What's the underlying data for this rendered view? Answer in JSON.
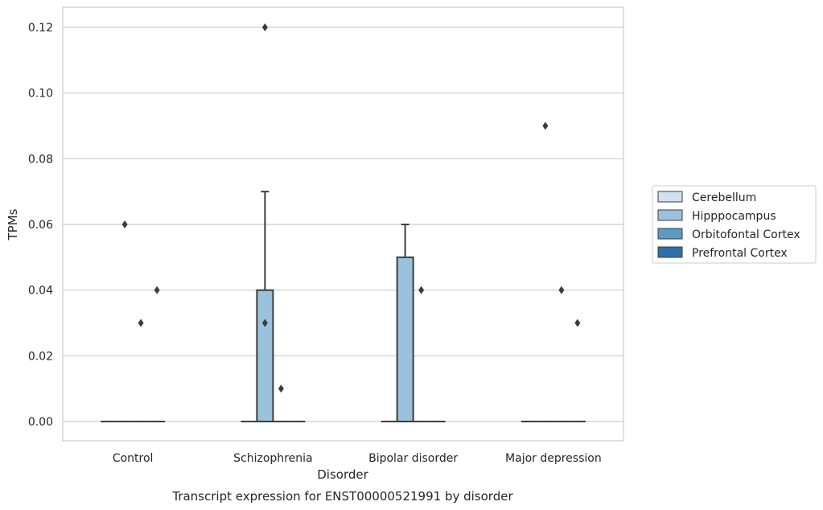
{
  "chart_data": {
    "type": "box",
    "title": "Transcript expression for ENST00000521991 by disorder",
    "xlabel": "Disorder",
    "ylabel": "TPMs",
    "ylim": [
      -0.006,
      0.126
    ],
    "yticks": [
      0.0,
      0.02,
      0.04,
      0.06,
      0.08,
      0.1,
      0.12
    ],
    "ytick_labels": [
      "0.00",
      "0.02",
      "0.04",
      "0.06",
      "0.08",
      "0.10",
      "0.12"
    ],
    "grid": "horizontal",
    "legend_position": "right",
    "categories": [
      "Control",
      "Schizophrenia",
      "Bipolar disorder",
      "Major depression"
    ],
    "series": [
      {
        "name": "Cerebellum",
        "color": "#d0e1f2",
        "boxes": [
          {
            "category": "Control",
            "q1": 0,
            "median": 0,
            "q3": 0,
            "whisker_low": 0,
            "whisker_high": 0,
            "outliers": []
          },
          {
            "category": "Schizophrenia",
            "q1": 0,
            "median": 0,
            "q3": 0,
            "whisker_low": 0,
            "whisker_high": 0,
            "outliers": []
          },
          {
            "category": "Bipolar disorder",
            "q1": 0,
            "median": 0,
            "q3": 0,
            "whisker_low": 0,
            "whisker_high": 0,
            "outliers": []
          },
          {
            "category": "Major depression",
            "q1": 0,
            "median": 0,
            "q3": 0,
            "whisker_low": 0,
            "whisker_high": 0,
            "outliers": []
          }
        ]
      },
      {
        "name": "Hipppocampus",
        "color": "#9ac2dc",
        "boxes": [
          {
            "category": "Control",
            "q1": 0,
            "median": 0,
            "q3": 0,
            "whisker_low": 0,
            "whisker_high": 0,
            "outliers": [
              0.06
            ]
          },
          {
            "category": "Schizophrenia",
            "q1": 0,
            "median": 0,
            "q3": 0.04,
            "whisker_low": 0,
            "whisker_high": 0.07,
            "outliers": [
              0.03,
              0.12
            ]
          },
          {
            "category": "Bipolar disorder",
            "q1": 0,
            "median": 0,
            "q3": 0.05,
            "whisker_low": 0,
            "whisker_high": 0.06,
            "outliers": []
          },
          {
            "category": "Major depression",
            "q1": 0,
            "median": 0,
            "q3": 0,
            "whisker_low": 0,
            "whisker_high": 0,
            "outliers": [
              0.09
            ]
          }
        ]
      },
      {
        "name": "Orbitofontal Cortex",
        "color": "#5b9cc6",
        "boxes": [
          {
            "category": "Control",
            "q1": 0,
            "median": 0,
            "q3": 0,
            "whisker_low": 0,
            "whisker_high": 0,
            "outliers": [
              0.03
            ]
          },
          {
            "category": "Schizophrenia",
            "q1": 0,
            "median": 0,
            "q3": 0,
            "whisker_low": 0,
            "whisker_high": 0,
            "outliers": [
              0.01
            ]
          },
          {
            "category": "Bipolar disorder",
            "q1": 0,
            "median": 0,
            "q3": 0,
            "whisker_low": 0,
            "whisker_high": 0,
            "outliers": [
              0.04
            ]
          },
          {
            "category": "Major depression",
            "q1": 0,
            "median": 0,
            "q3": 0,
            "whisker_low": 0,
            "whisker_high": 0,
            "outliers": [
              0.04
            ]
          }
        ]
      },
      {
        "name": "Prefrontal Cortex",
        "color": "#2f6ea8",
        "boxes": [
          {
            "category": "Control",
            "q1": 0,
            "median": 0,
            "q3": 0,
            "whisker_low": 0,
            "whisker_high": 0,
            "outliers": [
              0.04
            ]
          },
          {
            "category": "Schizophrenia",
            "q1": 0,
            "median": 0,
            "q3": 0,
            "whisker_low": 0,
            "whisker_high": 0,
            "outliers": []
          },
          {
            "category": "Bipolar disorder",
            "q1": 0,
            "median": 0,
            "q3": 0,
            "whisker_low": 0,
            "whisker_high": 0,
            "outliers": []
          },
          {
            "category": "Major depression",
            "q1": 0,
            "median": 0,
            "q3": 0,
            "whisker_low": 0,
            "whisker_high": 0,
            "outliers": [
              0.03
            ]
          }
        ]
      }
    ],
    "colors": {
      "grid": "#cccccc",
      "frame": "#cccccc",
      "box_edge": "#3c3c3c",
      "outlier": "#3c3c3c"
    }
  }
}
